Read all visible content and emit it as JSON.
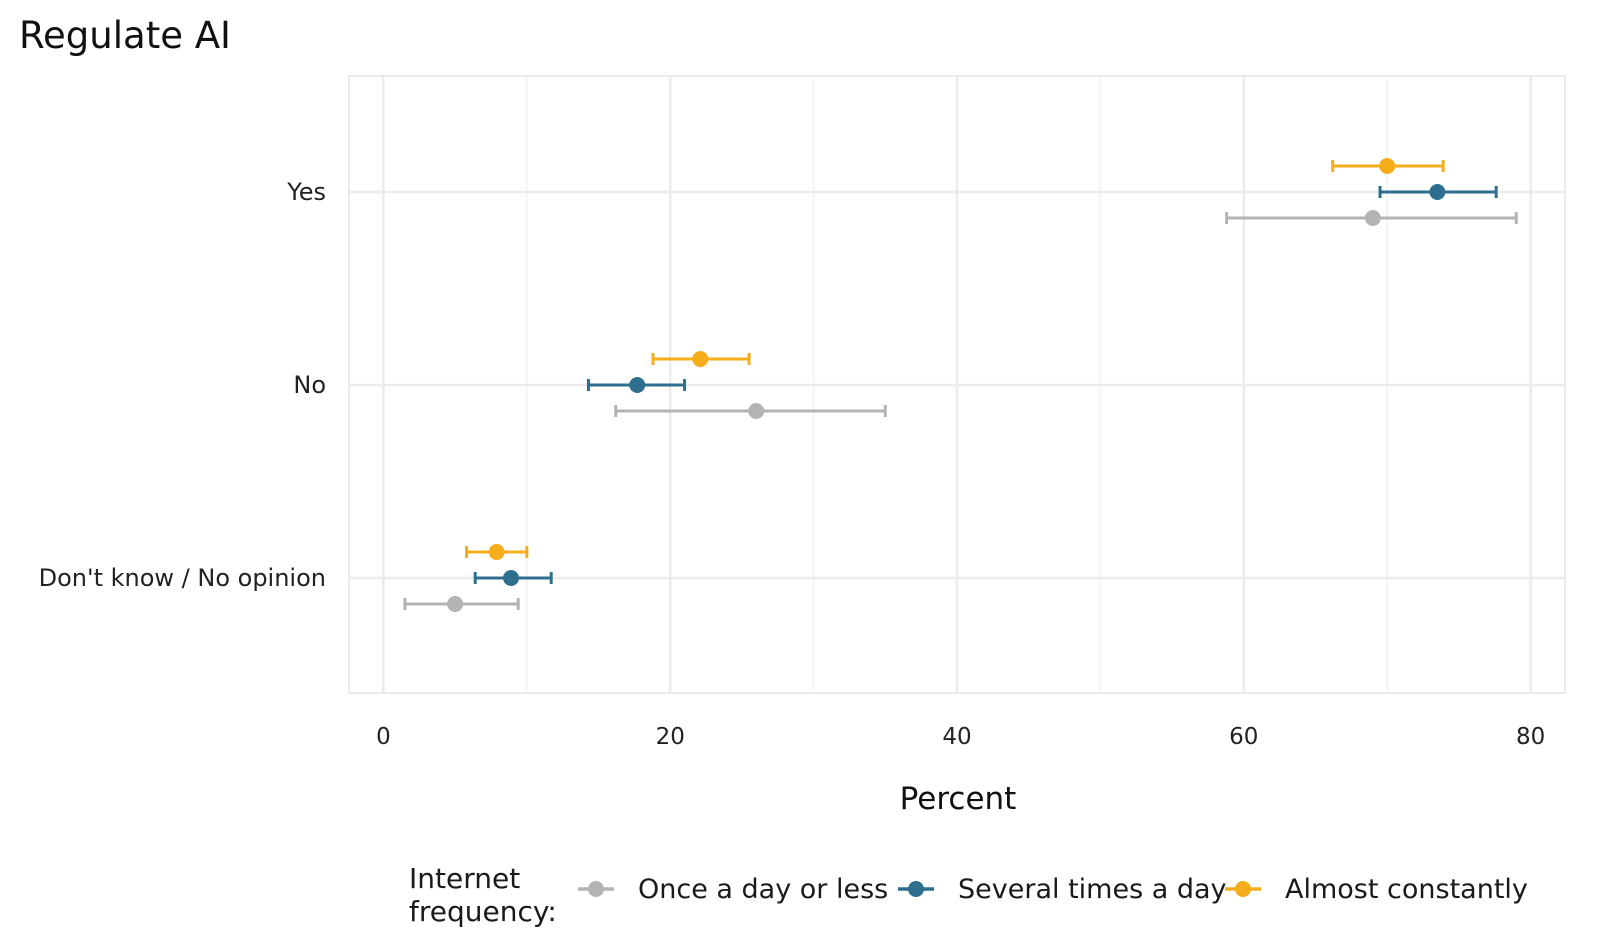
{
  "chart_data": {
    "type": "errorbar",
    "title": "Regulate AI",
    "xlabel": "Percent",
    "ylabel": "",
    "xlim": [
      -2.4,
      82.4
    ],
    "x_ticks": [
      0,
      20,
      40,
      60,
      80
    ],
    "grid": true,
    "categories": [
      "Yes",
      "No",
      "Don't know / No opinion"
    ],
    "legend": {
      "title_lines": [
        "Internet",
        "frequency:"
      ],
      "placement": "bottom"
    },
    "series": [
      {
        "name": "Once a day or less",
        "color": "#b3b3b3",
        "points": [
          {
            "category": "Yes",
            "value": 69.0,
            "low": 58.8,
            "high": 79.0
          },
          {
            "category": "No",
            "value": 26.0,
            "low": 16.2,
            "high": 35.0
          },
          {
            "category": "Don't know / No opinion",
            "value": 5.0,
            "low": 1.5,
            "high": 9.4
          }
        ]
      },
      {
        "name": "Several times a day",
        "color": "#2e6f8e",
        "points": [
          {
            "category": "Yes",
            "value": 73.5,
            "low": 69.5,
            "high": 77.6
          },
          {
            "category": "No",
            "value": 17.7,
            "low": 14.3,
            "high": 21.0
          },
          {
            "category": "Don't know / No opinion",
            "value": 8.9,
            "low": 6.4,
            "high": 11.7
          }
        ]
      },
      {
        "name": "Almost constantly",
        "color": "#f6ad1b",
        "points": [
          {
            "category": "Yes",
            "value": 70.0,
            "low": 66.2,
            "high": 73.9
          },
          {
            "category": "No",
            "value": 22.1,
            "low": 18.8,
            "high": 25.5
          },
          {
            "category": "Don't know / No opinion",
            "value": 7.9,
            "low": 5.8,
            "high": 10.0
          }
        ]
      }
    ]
  }
}
